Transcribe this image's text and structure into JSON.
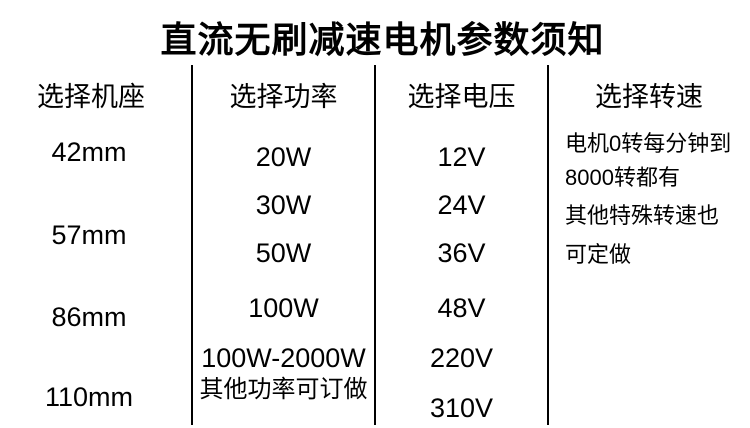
{
  "title": "直流无刷减速电机参数须知",
  "colors": {
    "background": "#ffffff",
    "text": "#000000",
    "divider": "#000000"
  },
  "table": {
    "columns": [
      {
        "header": "选择机座",
        "items": [
          "42mm",
          "57mm",
          "86mm",
          "110mm"
        ]
      },
      {
        "header": "选择功率",
        "items": [
          "20W",
          "30W",
          "50W",
          "100W",
          "100W-2000W",
          "其他功率可订做"
        ]
      },
      {
        "header": "选择电压",
        "items": [
          "12V",
          "24V",
          "36V",
          "48V",
          "220V",
          "310V"
        ]
      },
      {
        "header": "选择转速",
        "items": [
          "电机0转每分钟到",
          "8000转都有",
          "其他特殊转速也",
          "可定做"
        ]
      }
    ]
  }
}
